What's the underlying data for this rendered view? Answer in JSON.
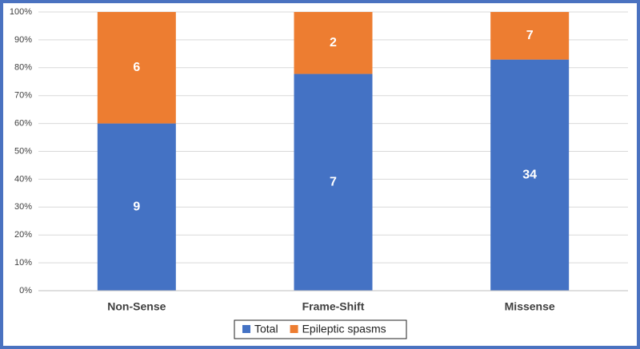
{
  "chart_data": {
    "type": "bar",
    "stacked": "percent",
    "categories": [
      "Non-Sense",
      "Frame-Shift",
      "Missense"
    ],
    "series": [
      {
        "name": "Total",
        "color": "#4472c4",
        "values": [
          9,
          7,
          34
        ]
      },
      {
        "name": "Epileptic spasms",
        "color": "#ed7d31",
        "values": [
          6,
          2,
          7
        ]
      }
    ],
    "ylim": [
      0,
      100
    ],
    "yticks": [
      {
        "value": 0,
        "label": "0%"
      },
      {
        "value": 10,
        "label": "10%"
      },
      {
        "value": 20,
        "label": "20%"
      },
      {
        "value": 30,
        "label": "30%"
      },
      {
        "value": 40,
        "label": "40%"
      },
      {
        "value": 50,
        "label": "50%"
      },
      {
        "value": 60,
        "label": "60%"
      },
      {
        "value": 70,
        "label": "70%"
      },
      {
        "value": 80,
        "label": "80%"
      },
      {
        "value": 90,
        "label": "90%"
      },
      {
        "value": 100,
        "label": "100%"
      }
    ],
    "grid": true,
    "legend": "bottom"
  }
}
